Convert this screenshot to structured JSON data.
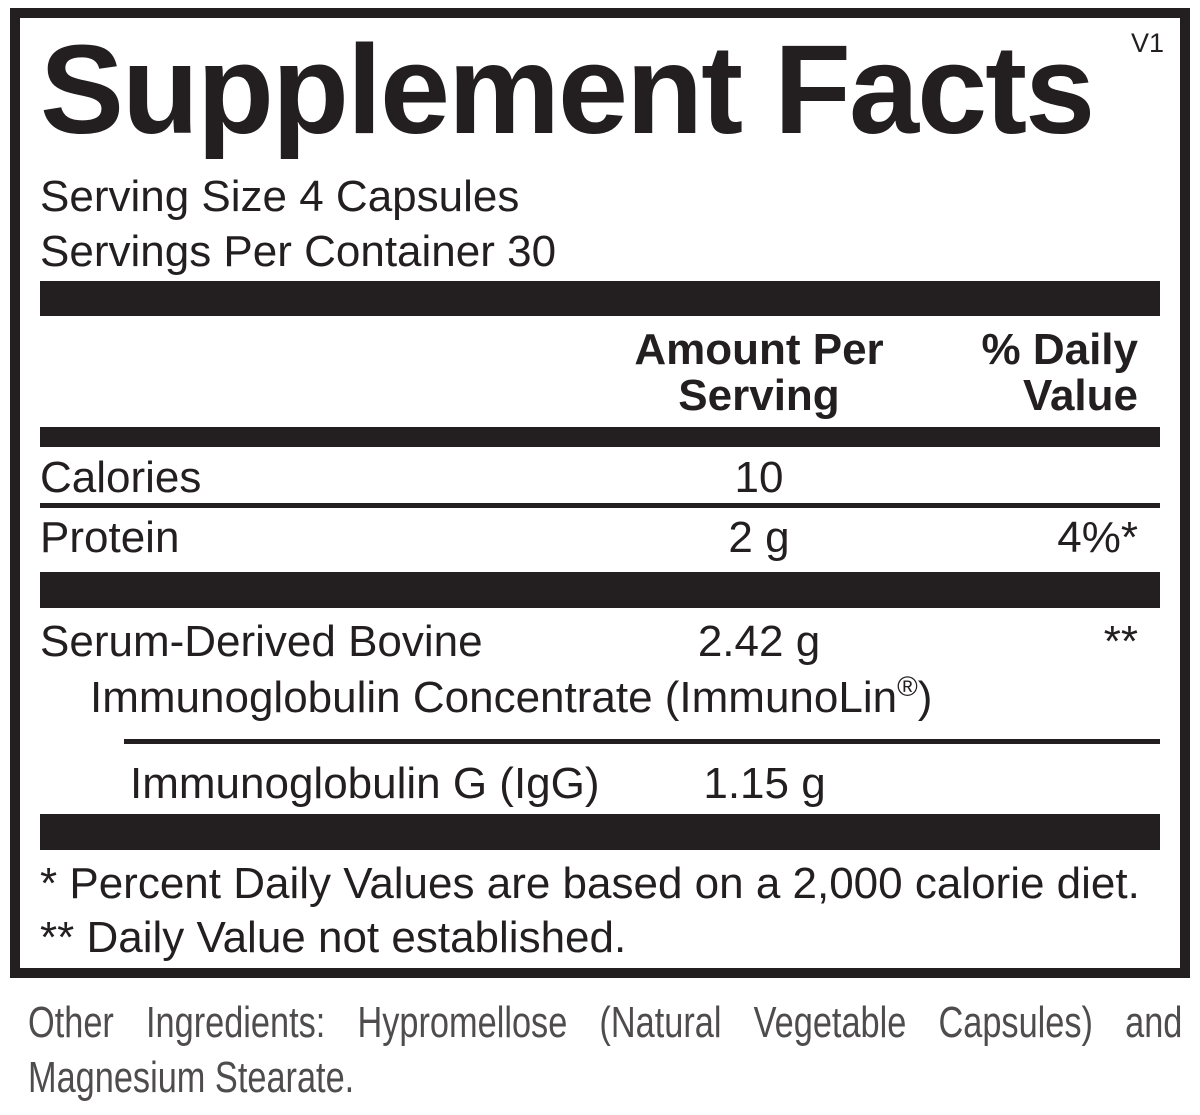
{
  "label": {
    "version": "V1",
    "title": "Supplement Facts",
    "serving_size": "Serving Size 4 Capsules",
    "servings_per_container": "Servings Per Container 30",
    "header": {
      "amount_line1": "Amount Per",
      "amount_line2": "Serving",
      "dv_line1": "% Daily",
      "dv_line2": "Value"
    },
    "rows": {
      "calories": {
        "name": "Calories",
        "amount": "10",
        "dv": ""
      },
      "protein": {
        "name": "Protein",
        "amount": "2 g",
        "dv": "4%*"
      },
      "serum": {
        "name_line1": "Serum-Derived Bovine",
        "name_line2_pre": "Immunoglobulin Concentrate (ImmunoLin",
        "registered_mark": "®",
        "name_line2_post": ")",
        "amount": "2.42 g",
        "dv": "**"
      },
      "igg": {
        "name": "Immunoglobulin G (IgG)",
        "amount": "1.15 g"
      }
    },
    "footnotes": {
      "daily_values": "* Percent Daily Values are based on a 2,000 calorie diet.",
      "not_established": "** Daily Value not established."
    }
  },
  "other_ingredients": {
    "line1": "Other Ingredients: Hypromellose (Natural Vegetable Capsules) and",
    "line2": "Magnesium Stearate."
  },
  "colors": {
    "ink": "#231f20",
    "muted_text": "#4f4c4d",
    "background": "#ffffff"
  }
}
